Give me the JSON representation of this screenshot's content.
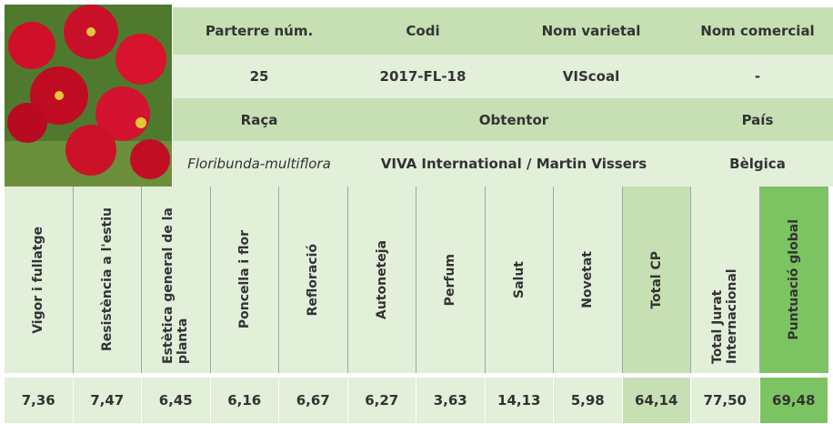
{
  "top_rows": [
    [
      "Parterre núm.",
      "Codi",
      "Nom varietal",
      "Nom comercial"
    ],
    [
      "25",
      "2017-FL-18",
      "VIScoal",
      "-"
    ],
    [
      "Raça",
      "Obtentor",
      "País"
    ],
    [
      "Floribunda-multiflora",
      "VIVA International / Martin Vissers",
      "Bèlgica"
    ]
  ],
  "score_table": {
    "headers": [
      "Vigor i fullatge",
      "Resistència a l'estiu",
      "Estètica general de la planta",
      "Poncella i flor",
      "Refloració",
      "Autoneteja",
      "Perfum",
      "Salut",
      "Novetat",
      "Total CP",
      "Total Jurat Internacional",
      "Puntuació global"
    ],
    "values": [
      "7,36",
      "7,47",
      "6,45",
      "6,16",
      "6,67",
      "6,27",
      "3,63",
      "14,13",
      "5,98",
      "64,14",
      "77,50",
      "69,48"
    ]
  }
}
